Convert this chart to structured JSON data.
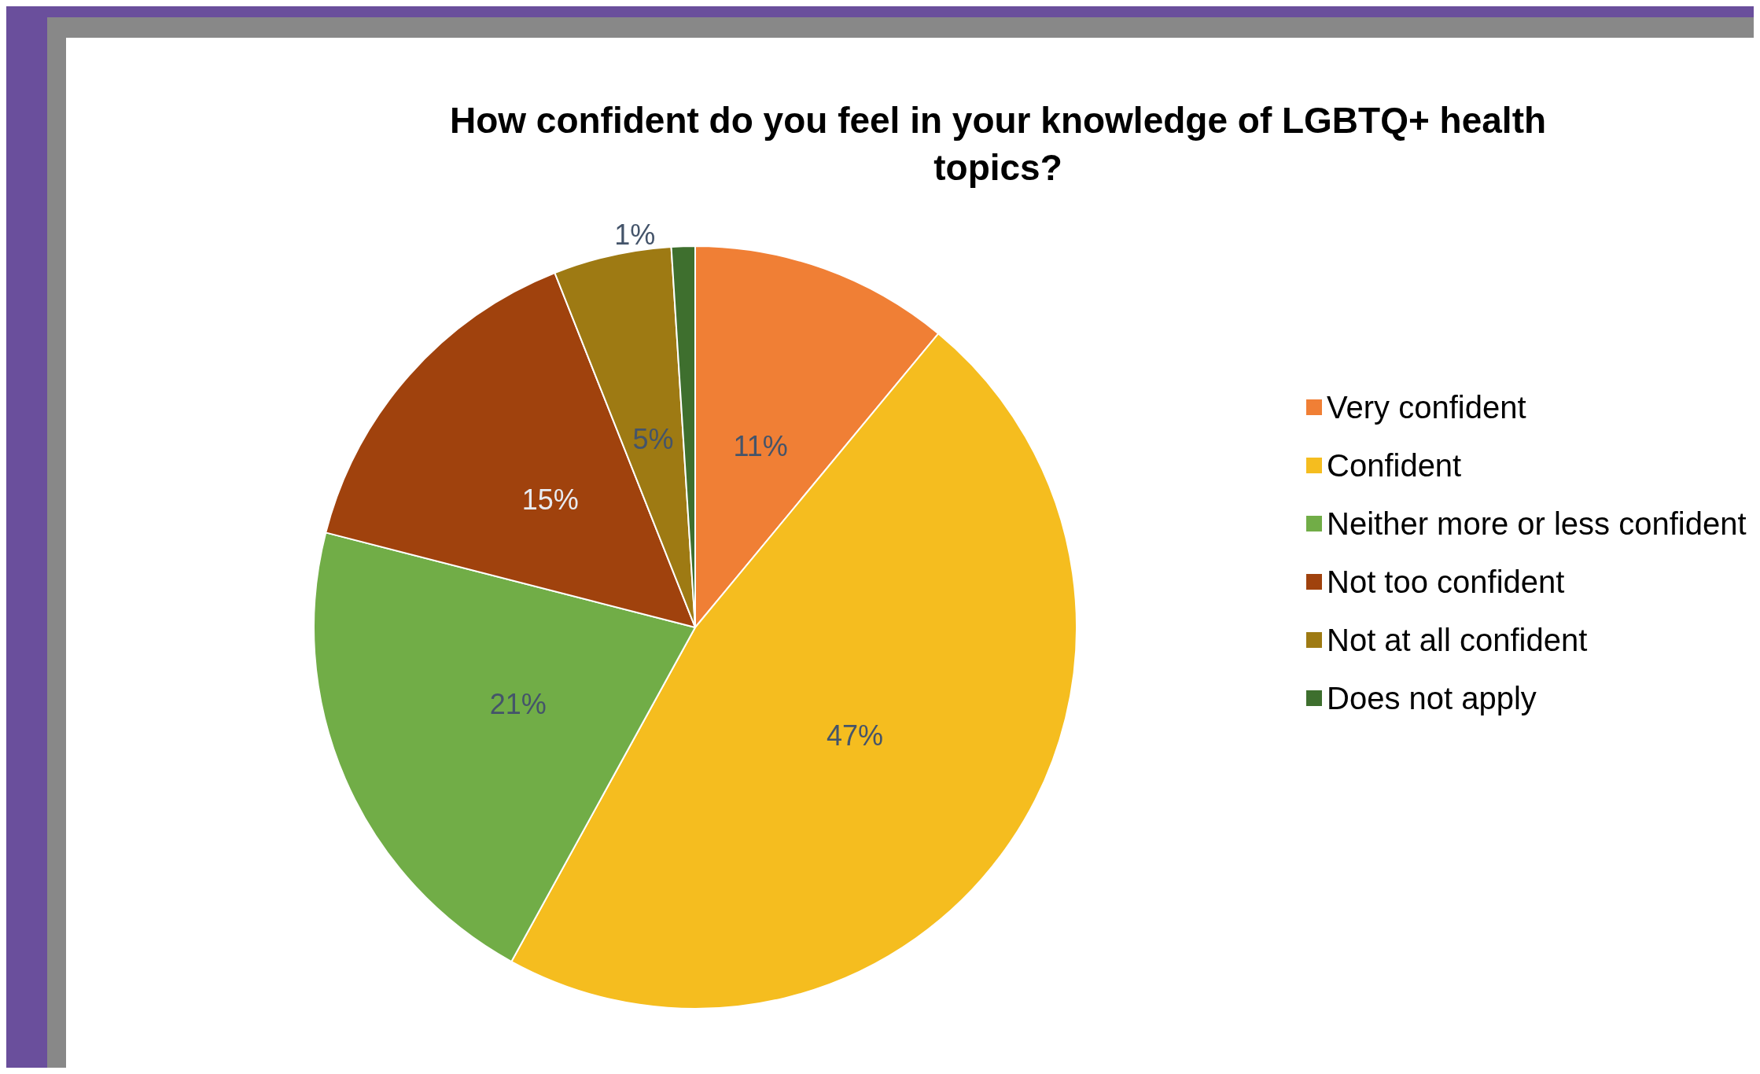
{
  "chart_data": {
    "type": "pie",
    "title": "How confident do you feel in your knowledge of LGBTQ+ health\ntopics?",
    "categories": [
      "Very confident",
      "Confident",
      "Neither more or less confident",
      "Not too confident",
      "Not at all confident",
      "Does not apply"
    ],
    "values": [
      11,
      47,
      21,
      15,
      5,
      1
    ],
    "colors": [
      "#f07f35",
      "#f5bd1f",
      "#71ad47",
      "#a0420d",
      "#9e7a13",
      "#3e6f2e"
    ],
    "value_labels": [
      "11%",
      "47%",
      "21%",
      "15%",
      "5%",
      "1%"
    ],
    "legend": "right"
  }
}
